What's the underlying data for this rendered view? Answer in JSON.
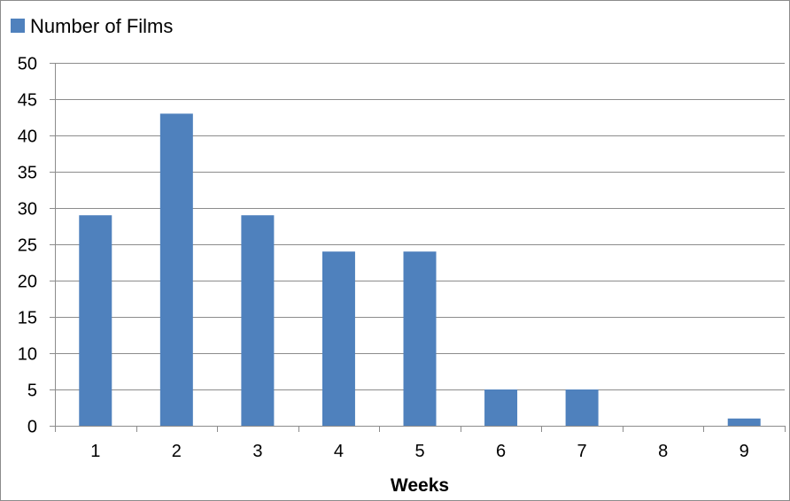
{
  "chart_data": {
    "type": "bar",
    "categories": [
      "1",
      "2",
      "3",
      "4",
      "5",
      "6",
      "7",
      "8",
      "9"
    ],
    "series": [
      {
        "name": "Number of Films",
        "values": [
          29,
          43,
          29,
          24,
          24,
          5,
          5,
          0,
          1
        ],
        "color": "#4f81bd"
      }
    ],
    "xlabel": "Weeks",
    "ylabel": "",
    "ylim": [
      0,
      50
    ],
    "yticks": [
      "0",
      "5",
      "10",
      "15",
      "20",
      "25",
      "30",
      "35",
      "40",
      "45",
      "50"
    ],
    "grid": true,
    "legend_position": "top-left"
  }
}
